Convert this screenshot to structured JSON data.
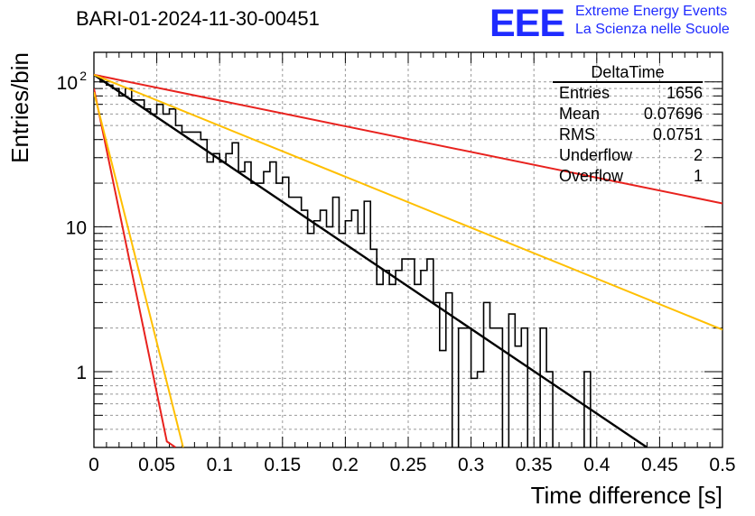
{
  "title": "BARI-01-2024-11-30-00451",
  "logo": {
    "mark": "EEE",
    "line1": "Extreme Energy Events",
    "line2": "La Scienza nelle Scuole",
    "color": "#1f2bff"
  },
  "stats": {
    "name": "DeltaTime",
    "rows": [
      {
        "label": "Entries",
        "value": "1656"
      },
      {
        "label": "Mean",
        "value": "0.07696"
      },
      {
        "label": "RMS",
        "value": "0.0751"
      },
      {
        "label": "Underflow",
        "value": "2"
      },
      {
        "label": "Overflow",
        "value": "1"
      }
    ]
  },
  "chart_data": {
    "type": "line",
    "xlabel": "Time difference [s]",
    "ylabel": "Entries/bin",
    "xlim": [
      0,
      0.5
    ],
    "ylim": [
      0.3,
      160
    ],
    "yscale": "log",
    "grid": true,
    "xticks": [
      "0",
      "0.05",
      "0.1",
      "0.15",
      "0.2",
      "0.25",
      "0.3",
      "0.35",
      "0.4",
      "0.45",
      "0.5"
    ],
    "yticks": [
      {
        "value": 1,
        "label": "1"
      },
      {
        "value": 10,
        "label": "10"
      },
      {
        "value": 100,
        "label": "10",
        "exp": "2"
      }
    ],
    "histogram": {
      "bin_width": 0.005,
      "color": "#000000",
      "values": [
        110,
        100,
        95,
        90,
        80,
        90,
        75,
        75,
        65,
        60,
        70,
        60,
        65,
        50,
        45,
        45,
        45,
        40,
        28,
        32,
        28,
        32,
        38,
        24,
        28,
        20,
        20,
        24,
        28,
        20,
        22,
        16,
        16,
        13,
        9,
        11,
        13,
        10,
        16,
        9,
        11,
        13,
        9,
        15,
        7,
        4,
        5,
        4,
        5,
        6,
        6,
        4,
        5,
        6,
        3,
        1.4,
        3.5,
        0,
        2,
        2,
        0.9,
        1,
        3,
        2,
        2,
        0,
        2.5,
        1.5,
        2,
        0,
        0,
        2,
        1,
        0,
        0,
        0,
        0,
        0,
        1,
        0,
        0,
        0,
        0,
        0,
        0,
        0,
        0,
        0,
        0,
        0,
        0,
        0,
        0,
        0,
        0,
        0,
        0,
        0,
        0,
        0
      ]
    },
    "fit_lines": [
      {
        "color": "#000000",
        "points": [
          [
            0,
            112
          ],
          [
            0.44,
            0.3
          ]
        ]
      },
      {
        "color": "#e8221e",
        "points": [
          [
            0,
            112
          ],
          [
            0.5,
            14.5
          ]
        ]
      },
      {
        "color": "#ffbf00",
        "points": [
          [
            0,
            112
          ],
          [
            0.5,
            1.95
          ]
        ]
      },
      {
        "color": "#e8221e",
        "points": [
          [
            0,
            90
          ],
          [
            0.058,
            0.33
          ],
          [
            0.065,
            0.3
          ]
        ]
      },
      {
        "color": "#ffbf00",
        "points": [
          [
            0,
            85
          ],
          [
            0.071,
            0.3
          ]
        ]
      }
    ]
  }
}
